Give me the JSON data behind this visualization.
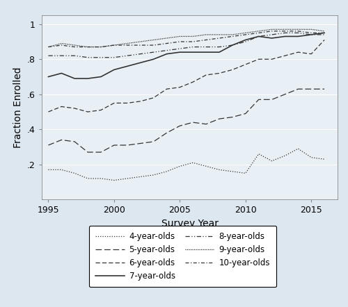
{
  "years": [
    1995,
    1996,
    1997,
    1998,
    1999,
    2000,
    2001,
    2002,
    2003,
    2004,
    2005,
    2006,
    2007,
    2008,
    2009,
    2010,
    2011,
    2012,
    2013,
    2014,
    2015,
    2016
  ],
  "age4": [
    0.17,
    0.17,
    0.15,
    0.12,
    0.12,
    0.11,
    0.12,
    0.13,
    0.14,
    0.16,
    0.19,
    0.21,
    0.19,
    0.17,
    0.16,
    0.15,
    0.26,
    0.22,
    0.25,
    0.29,
    0.24,
    0.23
  ],
  "age5": [
    0.31,
    0.34,
    0.33,
    0.27,
    0.27,
    0.31,
    0.31,
    0.32,
    0.33,
    0.38,
    0.42,
    0.44,
    0.43,
    0.46,
    0.47,
    0.49,
    0.57,
    0.57,
    0.6,
    0.63,
    0.63,
    0.63
  ],
  "age6": [
    0.5,
    0.53,
    0.52,
    0.5,
    0.51,
    0.55,
    0.55,
    0.56,
    0.58,
    0.63,
    0.64,
    0.67,
    0.71,
    0.72,
    0.74,
    0.77,
    0.8,
    0.8,
    0.82,
    0.84,
    0.83,
    0.91
  ],
  "age7": [
    0.7,
    0.72,
    0.69,
    0.69,
    0.7,
    0.74,
    0.76,
    0.78,
    0.8,
    0.83,
    0.84,
    0.84,
    0.84,
    0.84,
    0.88,
    0.91,
    0.93,
    0.92,
    0.93,
    0.93,
    0.94,
    0.95
  ],
  "age8": [
    0.82,
    0.82,
    0.82,
    0.81,
    0.81,
    0.81,
    0.82,
    0.83,
    0.84,
    0.85,
    0.86,
    0.87,
    0.87,
    0.87,
    0.88,
    0.9,
    0.93,
    0.94,
    0.95,
    0.95,
    0.94,
    0.94
  ],
  "age9": [
    0.87,
    0.89,
    0.88,
    0.87,
    0.87,
    0.88,
    0.89,
    0.9,
    0.91,
    0.92,
    0.93,
    0.93,
    0.94,
    0.94,
    0.94,
    0.95,
    0.96,
    0.97,
    0.97,
    0.97,
    0.97,
    0.96
  ],
  "age10": [
    0.87,
    0.88,
    0.87,
    0.87,
    0.87,
    0.88,
    0.88,
    0.88,
    0.88,
    0.89,
    0.9,
    0.9,
    0.91,
    0.92,
    0.93,
    0.94,
    0.95,
    0.96,
    0.96,
    0.96,
    0.95,
    0.95
  ],
  "xlabel": "Survey Year",
  "ylabel": "Fraction Enrolled",
  "xlim": [
    1994.5,
    2017.0
  ],
  "ylim": [
    0.0,
    1.05
  ],
  "yticks": [
    0.2,
    0.4,
    0.6,
    0.8,
    1.0
  ],
  "ytick_labels": [
    ".2",
    ".4",
    ".6",
    ".8",
    "1"
  ],
  "xticks": [
    1995,
    2000,
    2005,
    2010,
    2015
  ],
  "bg_color": "#dce7f0",
  "plot_bg_color": "#e8eff5"
}
